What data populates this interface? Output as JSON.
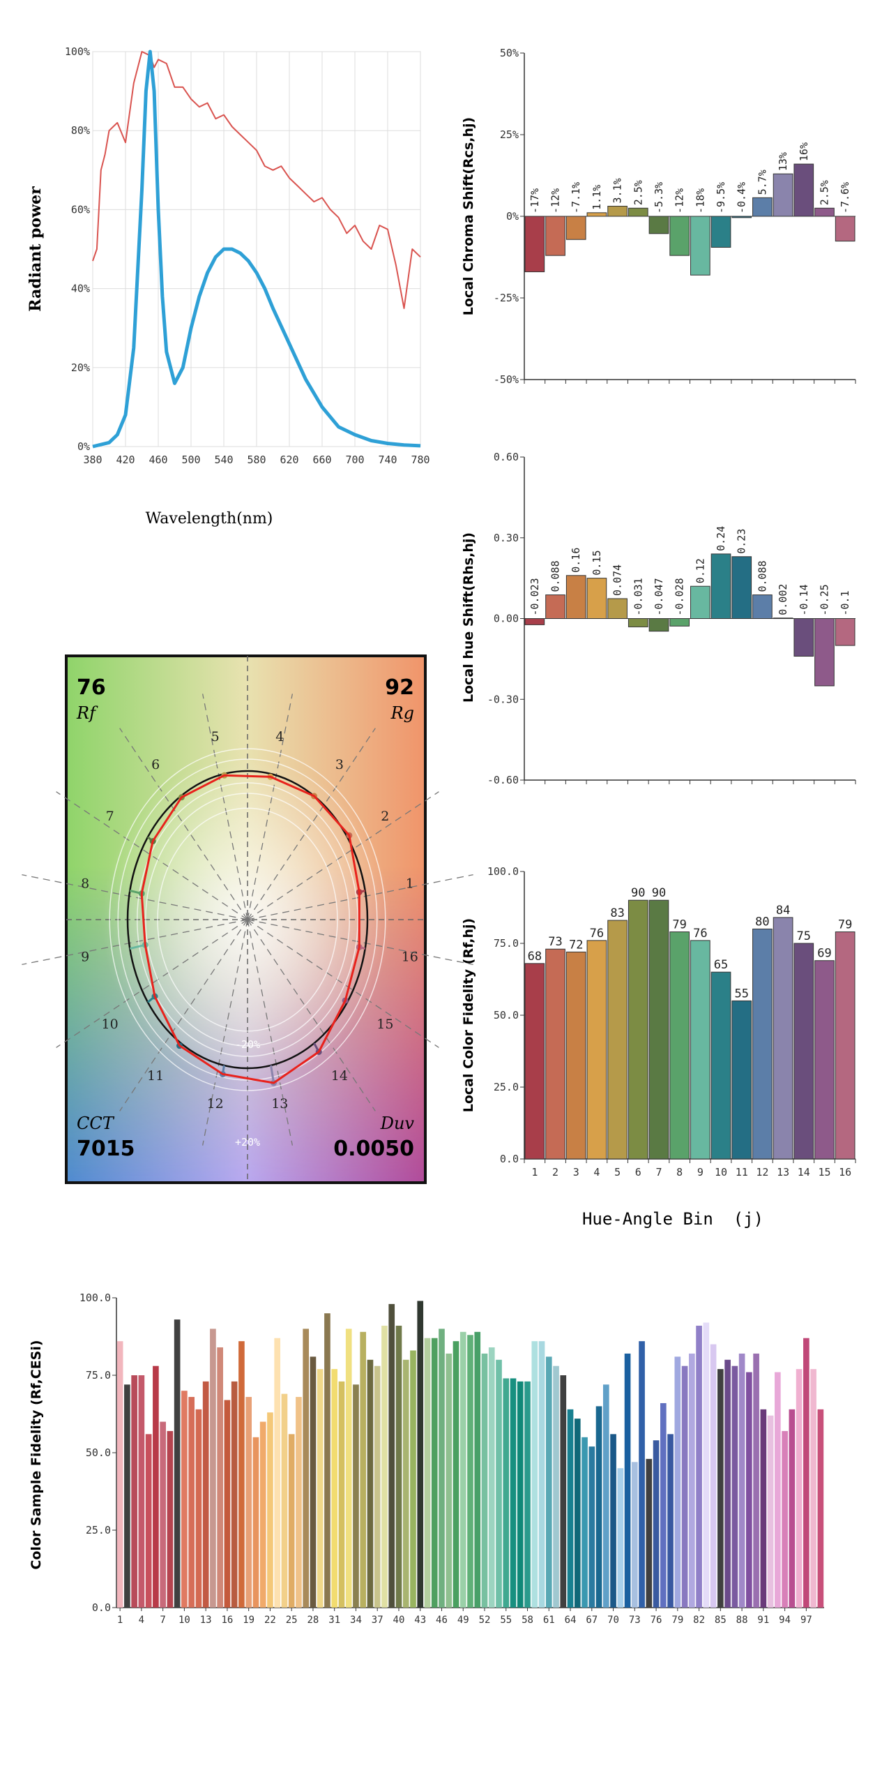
{
  "spectrum": {
    "type": "line",
    "xlabel": "Wavelength(nm)",
    "ylabel": "Radiant power",
    "x_ticks": [
      380,
      420,
      460,
      500,
      540,
      580,
      620,
      660,
      700,
      740,
      780
    ],
    "y_ticks": [
      "0%",
      "20%",
      "40%",
      "60%",
      "80%",
      "100%"
    ],
    "xlim": [
      380,
      780
    ],
    "ylim": [
      0,
      100
    ],
    "series": [
      {
        "color": "#2ea0d6",
        "x": [
          380,
          400,
          410,
          420,
          430,
          440,
          445,
          450,
          455,
          460,
          465,
          470,
          480,
          490,
          500,
          510,
          520,
          530,
          540,
          550,
          560,
          570,
          580,
          590,
          600,
          620,
          640,
          660,
          680,
          700,
          720,
          740,
          760,
          780
        ],
        "y": [
          0,
          1,
          3,
          8,
          25,
          65,
          90,
          100,
          90,
          60,
          38,
          24,
          16,
          20,
          30,
          38,
          44,
          48,
          50,
          50,
          49,
          47,
          44,
          40,
          35,
          26,
          17,
          10,
          5,
          3,
          1.5,
          0.8,
          0.4,
          0.2
        ]
      },
      {
        "color": "#d9534f",
        "x": [
          380,
          385,
          390,
          395,
          400,
          405,
          410,
          420,
          430,
          440,
          450,
          455,
          460,
          470,
          480,
          490,
          500,
          510,
          520,
          530,
          540,
          550,
          560,
          570,
          580,
          590,
          600,
          610,
          620,
          630,
          640,
          650,
          660,
          670,
          680,
          690,
          700,
          710,
          720,
          730,
          740,
          750,
          760,
          770,
          780
        ],
        "y": [
          47,
          50,
          70,
          74,
          80,
          81,
          82,
          77,
          92,
          100,
          99,
          96,
          98,
          97,
          91,
          91,
          88,
          86,
          87,
          83,
          84,
          81,
          79,
          77,
          75,
          71,
          70,
          71,
          68,
          66,
          64,
          62,
          63,
          60,
          58,
          54,
          56,
          52,
          50,
          56,
          55,
          46,
          35,
          50,
          48
        ]
      }
    ]
  },
  "chroma_shift": {
    "type": "bar",
    "ylabel": "Local Chroma Shift(Rcs,hj)",
    "y_ticks": [
      "50%",
      "25%",
      "0%",
      "-25%",
      "-50%"
    ],
    "ylim": [
      -50,
      50
    ],
    "values": [
      -17,
      -12,
      -7.1,
      1.1,
      3.1,
      2.5,
      -5.3,
      -12,
      -18,
      -9.5,
      -0.4,
      5.7,
      13,
      16,
      2.5,
      -7.6
    ],
    "labels": [
      "-17%",
      "-12%",
      "-7.1%",
      "1.1%",
      "3.1%",
      "2.5%",
      "-5.3%",
      "-12%",
      "-18%",
      "-9.5%",
      "-0.4%",
      "5.7%",
      "13%",
      "16%",
      "2.5%",
      "-7.6%"
    ]
  },
  "hue_shift": {
    "type": "bar",
    "ylabel": "Local hue Shift(Rhs,hj)",
    "y_ticks": [
      "0.60",
      "0.30",
      "0.00",
      "-0.30",
      "-0.60"
    ],
    "ylim": [
      -0.6,
      0.6
    ],
    "values": [
      -0.023,
      0.088,
      0.16,
      0.15,
      0.074,
      -0.031,
      -0.047,
      -0.028,
      0.12,
      0.24,
      0.23,
      0.088,
      0.002,
      -0.14,
      -0.25,
      -0.1
    ],
    "labels": [
      "-0.023",
      "0.088",
      "0.16",
      "0.15",
      "0.074",
      "-0.031",
      "-0.047",
      "-0.028",
      "0.12",
      "0.24",
      "0.23",
      "0.088",
      "0.002",
      "-0.14",
      "-0.25",
      "-0.1"
    ]
  },
  "local_fidelity": {
    "type": "bar",
    "ylabel": "Local Color Fidelity (Rf,hj)",
    "xlabel": "Hue-Angle Bin  (j)",
    "categories": [
      "1",
      "2",
      "3",
      "4",
      "5",
      "6",
      "7",
      "8",
      "9",
      "10",
      "11",
      "12",
      "13",
      "14",
      "15",
      "16"
    ],
    "y_ticks": [
      "100.0",
      "75.0",
      "50.0",
      "25.0",
      "0.0"
    ],
    "ylim": [
      0,
      100
    ],
    "values": [
      68,
      73,
      72,
      76,
      83,
      90,
      90,
      79,
      76,
      65,
      55,
      80,
      84,
      75,
      69,
      79
    ],
    "labels": [
      "68",
      "73",
      "72",
      "76",
      "83",
      "90",
      "90",
      "79",
      "76",
      "65",
      "55",
      "80",
      "84",
      "75",
      "69",
      "79"
    ]
  },
  "bin_colors": [
    "#a83e4a",
    "#c56b55",
    "#c88045",
    "#d7a04a",
    "#b59a4a",
    "#7c8c44",
    "#5a7a44",
    "#5aa26a",
    "#68b8a0",
    "#2b8088",
    "#246e84",
    "#5c7ea8",
    "#8a84ac",
    "#6a4e7c",
    "#8e5a8a",
    "#b46880"
  ],
  "vector_graphic": {
    "rf_value": "76",
    "rf_label": "Rf",
    "rg_value": "92",
    "rg_label": "Rg",
    "cct_label": "CCT",
    "cct_value": "7015",
    "duv_label": "Duv",
    "duv_value": "0.0050",
    "bin_numbers": [
      "1",
      "2",
      "3",
      "4",
      "5",
      "6",
      "7",
      "8",
      "9",
      "10",
      "11",
      "12",
      "13",
      "14",
      "15",
      "16"
    ],
    "inner_ring_label": "-20%",
    "outer_ring_label": "+20%",
    "test_radii": [
      0.95,
      1.02,
      1.0,
      0.98,
      0.99,
      0.99,
      0.95,
      0.9,
      0.87,
      0.93,
      1.02,
      1.06,
      1.12,
      1.07,
      0.98,
      0.95
    ]
  },
  "sample_fidelity": {
    "type": "bar",
    "ylabel": "Color Sample Fidelity (Rf,CESi)",
    "y_ticks": [
      "100.0",
      "75.0",
      "50.0",
      "25.0",
      "0.0"
    ],
    "ylim": [
      0,
      100
    ],
    "x_tick_labels": [
      "1",
      "4",
      "7",
      "10",
      "13",
      "16",
      "19",
      "22",
      "25",
      "28",
      "31",
      "34",
      "37",
      "40",
      "43",
      "46",
      "49",
      "52",
      "55",
      "58",
      "61",
      "64",
      "67",
      "70",
      "73",
      "76",
      "79",
      "82",
      "85",
      "88",
      "91",
      "94",
      "97"
    ],
    "values": [
      86,
      72,
      75,
      75,
      56,
      78,
      60,
      57,
      93,
      70,
      68,
      64,
      73,
      90,
      84,
      67,
      73,
      86,
      68,
      55,
      60,
      63,
      87,
      69,
      56,
      68,
      90,
      81,
      77,
      95,
      77,
      73,
      90,
      72,
      89,
      80,
      78,
      91,
      98,
      91,
      80,
      83,
      99,
      87,
      87,
      90,
      82,
      86,
      89,
      88,
      89,
      82,
      84,
      80,
      74,
      74,
      73,
      73,
      86,
      86,
      81,
      78,
      75,
      64,
      61,
      55,
      52,
      65,
      72,
      56,
      45,
      82,
      47,
      86,
      48,
      54,
      66,
      56,
      81,
      78,
      82,
      91,
      92,
      85,
      77,
      80,
      78,
      82,
      76,
      82,
      64,
      62,
      76,
      57,
      64,
      77,
      87,
      77,
      64
    ],
    "colors": [
      "#f2b6bd",
      "#404040",
      "#b84b5a",
      "#c4596a",
      "#c8505c",
      "#b83a48",
      "#c86a7a",
      "#b5444f",
      "#404040",
      "#e07a62",
      "#d66e58",
      "#d46a52",
      "#c25a44",
      "#c79890",
      "#d08878",
      "#c45a3c",
      "#b85c40",
      "#d06a3a",
      "#e8a076",
      "#e8945e",
      "#f0aa6a",
      "#f4c878",
      "#fde1b0",
      "#f2d08a",
      "#e0ac64",
      "#f0c288",
      "#a88a5a",
      "#6a5a40",
      "#f0d88a",
      "#8a7850",
      "#f2dc70",
      "#d4c060",
      "#f0e080",
      "#8a8050",
      "#b8b060",
      "#6c6a40",
      "#c8c48c",
      "#e0e0a4",
      "#50503c",
      "#707a4a",
      "#a8b470",
      "#98b460",
      "#303830",
      "#b4d0a0",
      "#50a060",
      "#70b080",
      "#90c090",
      "#4aa060",
      "#9ad0a8",
      "#60b078",
      "#48a068",
      "#78c0a0",
      "#9cd4c0",
      "#70c0a8",
      "#40a890",
      "#189080",
      "#108878",
      "#2a9a8c",
      "#aee0e0",
      "#a8d8e0",
      "#58a8b4",
      "#a0c8d0",
      "#404040",
      "#188090",
      "#106878",
      "#3a98b0",
      "#2a7aa0",
      "#1a6890",
      "#60a0c8",
      "#1a5888",
      "#a8d0ec",
      "#1a60a0",
      "#a8c0e0",
      "#3060a8",
      "#404040",
      "#3a5aa0",
      "#6070c0",
      "#3858a0",
      "#a0a8e0",
      "#8878c0",
      "#b0a8e0",
      "#9080c8",
      "#e4dcf8",
      "#d8c8f0",
      "#404040",
      "#6a4a8a",
      "#7a5aa0",
      "#a088c8",
      "#8050a0",
      "#9a70b0",
      "#6a3a7a",
      "#e8c0e0",
      "#e8a8d8",
      "#d880b8",
      "#b84e90",
      "#f0b0d0",
      "#c04878",
      "#f0b8d0",
      "#c8507a"
    ]
  }
}
